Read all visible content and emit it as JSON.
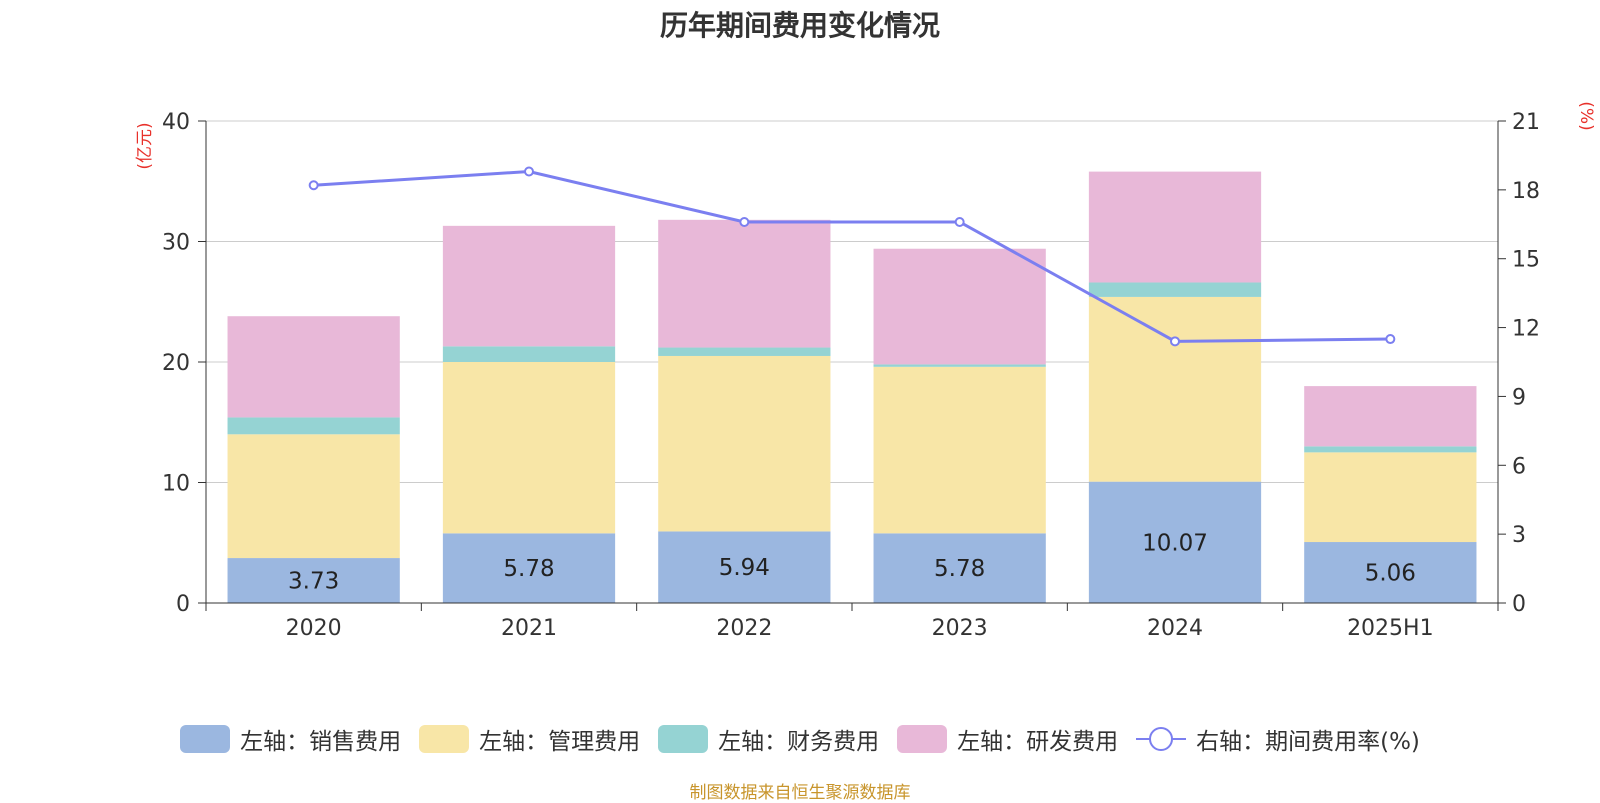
{
  "chart_data": {
    "type": "bar",
    "title": "历年期间费用变化情况",
    "categories": [
      "2020",
      "2021",
      "2022",
      "2023",
      "2024",
      "2025H1"
    ],
    "y_left_label": "(亿元)",
    "y_right_label": "(%)",
    "y_left_lim": [
      0,
      40
    ],
    "y_left_ticks": [
      "0",
      "10",
      "20",
      "30",
      "40"
    ],
    "y_right_lim": [
      0,
      21
    ],
    "y_right_ticks": [
      "0",
      "3",
      "6",
      "9",
      "12",
      "15",
      "18",
      "21"
    ],
    "grid": true,
    "legend_position": "bottom",
    "series": [
      {
        "name": "左轴：销售费用",
        "type": "bar",
        "axis": "left",
        "color": "#9bb7e0",
        "values": [
          3.73,
          5.78,
          5.94,
          5.78,
          10.07,
          5.06
        ],
        "labels": [
          "3.73",
          "5.78",
          "5.94",
          "5.78",
          "10.07",
          "5.06"
        ]
      },
      {
        "name": "左轴：管理费用",
        "type": "bar",
        "axis": "left",
        "color": "#f8e6a7",
        "values": [
          10.27,
          14.22,
          14.56,
          13.82,
          15.33,
          7.44
        ]
      },
      {
        "name": "左轴：财务费用",
        "type": "bar",
        "axis": "left",
        "color": "#95d3d3",
        "values": [
          1.4,
          1.3,
          0.7,
          0.2,
          1.2,
          0.5
        ]
      },
      {
        "name": "左轴：研发费用",
        "type": "bar",
        "axis": "left",
        "color": "#e8b8d8",
        "values": [
          8.4,
          10.0,
          10.6,
          9.6,
          9.2,
          5.0
        ]
      },
      {
        "name": "右轴：期间费用率(%)",
        "type": "line",
        "axis": "right",
        "color": "#7b7ff0",
        "values": [
          18.2,
          18.8,
          16.6,
          16.6,
          11.4,
          11.5
        ]
      }
    ]
  },
  "source": "制图数据来自恒生聚源数据库"
}
